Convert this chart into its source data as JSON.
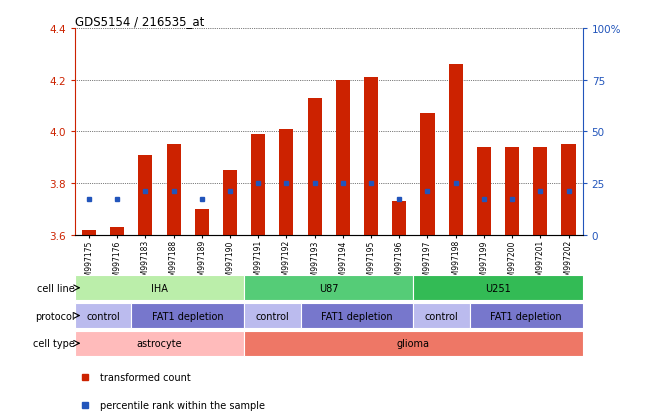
{
  "title": "GDS5154 / 216535_at",
  "samples": [
    "GSM997175",
    "GSM997176",
    "GSM997183",
    "GSM997188",
    "GSM997189",
    "GSM997190",
    "GSM997191",
    "GSM997192",
    "GSM997193",
    "GSM997194",
    "GSM997195",
    "GSM997196",
    "GSM997197",
    "GSM997198",
    "GSM997199",
    "GSM997200",
    "GSM997201",
    "GSM997202"
  ],
  "bar_values": [
    3.62,
    3.63,
    3.91,
    3.95,
    3.7,
    3.85,
    3.99,
    4.01,
    4.13,
    4.2,
    4.21,
    3.73,
    4.07,
    4.26,
    3.94,
    3.94,
    3.94,
    3.95
  ],
  "dot_values": [
    3.74,
    3.74,
    3.77,
    3.77,
    3.74,
    3.77,
    3.8,
    3.8,
    3.8,
    3.8,
    3.8,
    3.74,
    3.77,
    3.8,
    3.74,
    3.74,
    3.77,
    3.77
  ],
  "bar_bottom": 3.6,
  "ylim_min": 3.6,
  "ylim_max": 4.4,
  "yticks_left": [
    3.6,
    3.8,
    4.0,
    4.2,
    4.4
  ],
  "yticks_right": [
    0,
    25,
    50,
    75,
    100
  ],
  "ytick_labels_right": [
    "0",
    "25",
    "50",
    "75",
    "100%"
  ],
  "bar_color": "#cc2200",
  "dot_color": "#2255bb",
  "bg_color": "#ffffff",
  "grid_color": "#aaaaaa",
  "cell_line_groups": [
    {
      "label": "IHA",
      "start": 0,
      "end": 6,
      "color": "#bbeeaa"
    },
    {
      "label": "U87",
      "start": 6,
      "end": 12,
      "color": "#55cc77"
    },
    {
      "label": "U251",
      "start": 12,
      "end": 18,
      "color": "#33bb55"
    }
  ],
  "protocol_groups": [
    {
      "label": "control",
      "start": 0,
      "end": 2,
      "color": "#bbbbee"
    },
    {
      "label": "FAT1 depletion",
      "start": 2,
      "end": 6,
      "color": "#7777cc"
    },
    {
      "label": "control",
      "start": 6,
      "end": 8,
      "color": "#bbbbee"
    },
    {
      "label": "FAT1 depletion",
      "start": 8,
      "end": 12,
      "color": "#7777cc"
    },
    {
      "label": "control",
      "start": 12,
      "end": 14,
      "color": "#bbbbee"
    },
    {
      "label": "FAT1 depletion",
      "start": 14,
      "end": 18,
      "color": "#7777cc"
    }
  ],
  "cell_type_groups": [
    {
      "label": "astrocyte",
      "start": 0,
      "end": 6,
      "color": "#ffbbbb"
    },
    {
      "label": "glioma",
      "start": 6,
      "end": 18,
      "color": "#ee7766"
    }
  ],
  "row_labels": [
    "cell line",
    "protocol",
    "cell type"
  ],
  "legend_items": [
    {
      "label": "transformed count",
      "color": "#cc2200"
    },
    {
      "label": "percentile rank within the sample",
      "color": "#2255bb"
    }
  ]
}
